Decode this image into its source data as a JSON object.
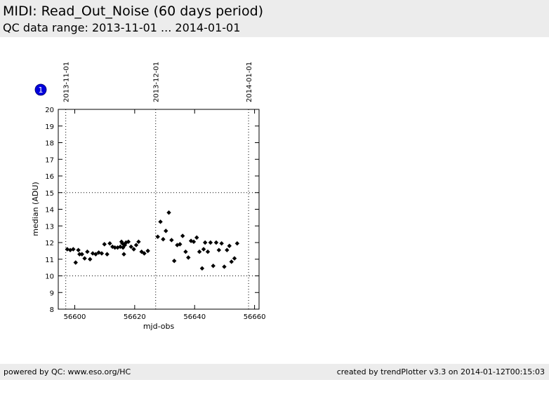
{
  "header": {
    "title": "MIDI: Read_Out_Noise (60 days period)",
    "subtitle": "QC data range: 2013-11-01 ... 2014-01-01"
  },
  "footer": {
    "left": "powered by QC: www.eso.org/HC",
    "right": "created by trendPlotter v3.3 on 2014-01-12T00:15:03"
  },
  "plot_badge": "1",
  "colors": {
    "header_bg": "#ececec",
    "marker": "#000000",
    "badge": "#0000dd"
  },
  "chart_data": {
    "type": "scatter",
    "xlabel": "mjd-obs",
    "ylabel": "median (ADU)",
    "xlim": [
      56594.5,
      56661.5
    ],
    "ylim": [
      8,
      20
    ],
    "x_ticks": [
      56600,
      56620,
      56640,
      56660
    ],
    "y_ticks": [
      8,
      9,
      10,
      11,
      12,
      13,
      14,
      15,
      16,
      17,
      18,
      19,
      20
    ],
    "y_reference_lines": [
      10,
      15
    ],
    "date_markers": [
      {
        "label": "2013-11-01",
        "x": 56597.0
      },
      {
        "label": "2013-12-01",
        "x": 56627.0
      },
      {
        "label": "2014-01-01",
        "x": 56658.0
      }
    ],
    "points": [
      [
        56597.5,
        11.6
      ],
      [
        56598.5,
        11.55
      ],
      [
        56599.5,
        11.6
      ],
      [
        56600.3,
        10.8
      ],
      [
        56601.2,
        11.55
      ],
      [
        56601.6,
        11.3
      ],
      [
        56602.4,
        11.3
      ],
      [
        56603.3,
        11.05
      ],
      [
        56604.2,
        11.45
      ],
      [
        56605.1,
        11.0
      ],
      [
        56606.0,
        11.35
      ],
      [
        56607.0,
        11.3
      ],
      [
        56608.0,
        11.4
      ],
      [
        56609.0,
        11.35
      ],
      [
        56609.9,
        11.9
      ],
      [
        56610.8,
        11.3
      ],
      [
        56611.7,
        11.95
      ],
      [
        56612.6,
        11.75
      ],
      [
        56613.4,
        11.7
      ],
      [
        56614.3,
        11.7
      ],
      [
        56615.2,
        11.75
      ],
      [
        56615.6,
        12.05
      ],
      [
        56615.9,
        11.95
      ],
      [
        56616.1,
        11.7
      ],
      [
        56616.4,
        11.3
      ],
      [
        56616.7,
        11.85
      ],
      [
        56617.1,
        12.0
      ],
      [
        56617.9,
        12.05
      ],
      [
        56618.8,
        11.75
      ],
      [
        56619.7,
        11.6
      ],
      [
        56620.5,
        11.85
      ],
      [
        56621.3,
        12.05
      ],
      [
        56622.3,
        11.45
      ],
      [
        56623.2,
        11.35
      ],
      [
        56624.4,
        11.5
      ],
      [
        56627.7,
        12.35
      ],
      [
        56628.6,
        13.25
      ],
      [
        56629.5,
        12.2
      ],
      [
        56630.4,
        12.7
      ],
      [
        56631.4,
        13.8
      ],
      [
        56632.3,
        12.15
      ],
      [
        56633.2,
        10.9
      ],
      [
        56634.2,
        11.85
      ],
      [
        56635.1,
        11.9
      ],
      [
        56636.0,
        12.4
      ],
      [
        56637.0,
        11.45
      ],
      [
        56637.9,
        11.1
      ],
      [
        56638.8,
        12.1
      ],
      [
        56639.7,
        12.05
      ],
      [
        56640.7,
        12.3
      ],
      [
        56641.6,
        11.45
      ],
      [
        56642.5,
        10.45
      ],
      [
        56643.0,
        11.6
      ],
      [
        56643.5,
        12.0
      ],
      [
        56644.4,
        11.45
      ],
      [
        56645.3,
        12.0
      ],
      [
        56646.2,
        10.6
      ],
      [
        56647.2,
        12.0
      ],
      [
        56648.1,
        11.55
      ],
      [
        56649.0,
        11.95
      ],
      [
        56649.9,
        10.55
      ],
      [
        56650.8,
        11.55
      ],
      [
        56651.6,
        11.8
      ],
      [
        56652.3,
        10.85
      ],
      [
        56653.3,
        11.05
      ],
      [
        56654.2,
        11.95
      ]
    ]
  }
}
